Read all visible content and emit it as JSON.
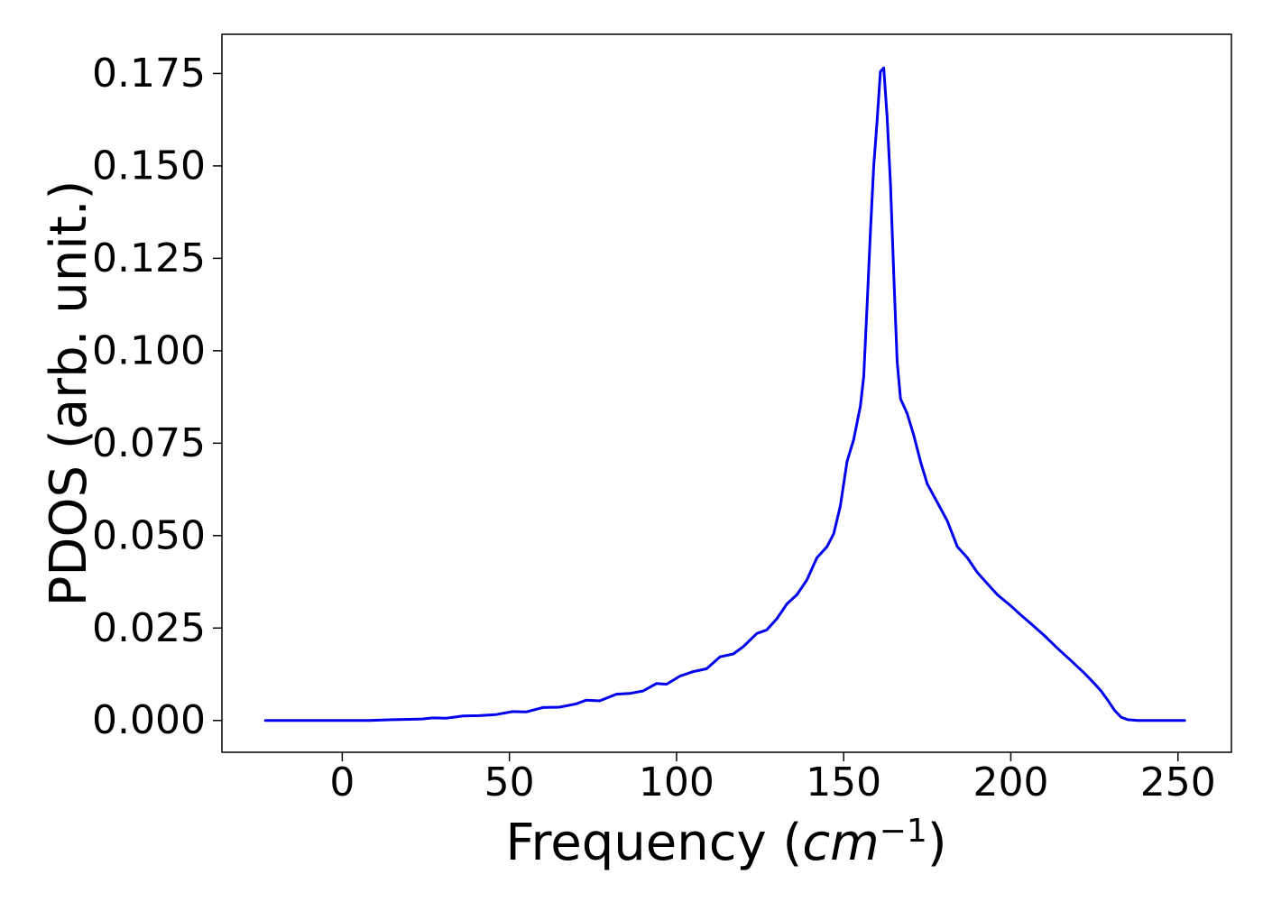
{
  "chart_data": {
    "type": "line",
    "title": "",
    "xlabel": {
      "prefix": "Frequency (",
      "italic": "cm",
      "superscript": "−1",
      "suffix": ")"
    },
    "ylabel": "PDOS (arb. unit.)",
    "xlim": [
      -36,
      266
    ],
    "ylim": [
      -0.0086,
      0.1856
    ],
    "x_ticks": [
      0,
      50,
      100,
      150,
      200,
      250
    ],
    "x_tick_labels": [
      "0",
      "50",
      "100",
      "150",
      "200",
      "250"
    ],
    "y_ticks": [
      0,
      0.025,
      0.05,
      0.075,
      0.1,
      0.125,
      0.15,
      0.175
    ],
    "y_tick_labels": [
      "0.000",
      "0.025",
      "0.050",
      "0.075",
      "0.100",
      "0.125",
      "0.150",
      "0.175"
    ],
    "grid": false,
    "series": [
      {
        "color": "#0000ee",
        "points": [
          [
            -23,
            0
          ],
          [
            0,
            0
          ],
          [
            8,
            0
          ],
          [
            15,
            0.0002
          ],
          [
            20,
            0.0003
          ],
          [
            24,
            0.0004
          ],
          [
            27,
            0.0007
          ],
          [
            31,
            0.0006
          ],
          [
            36,
            0.0012
          ],
          [
            41,
            0.0013
          ],
          [
            46,
            0.0016
          ],
          [
            51,
            0.0024
          ],
          [
            55,
            0.0023
          ],
          [
            60,
            0.0035
          ],
          [
            65,
            0.0036
          ],
          [
            70,
            0.0045
          ],
          [
            73,
            0.0055
          ],
          [
            77,
            0.0053
          ],
          [
            82,
            0.0071
          ],
          [
            86,
            0.0073
          ],
          [
            90,
            0.008
          ],
          [
            94,
            0.01
          ],
          [
            97,
            0.0098
          ],
          [
            101,
            0.012
          ],
          [
            105,
            0.0132
          ],
          [
            109,
            0.014
          ],
          [
            113,
            0.0172
          ],
          [
            117,
            0.018
          ],
          [
            120,
            0.02
          ],
          [
            124,
            0.0235
          ],
          [
            127,
            0.0245
          ],
          [
            130,
            0.0275
          ],
          [
            133,
            0.0315
          ],
          [
            136,
            0.034
          ],
          [
            139,
            0.038
          ],
          [
            142,
            0.044
          ],
          [
            145,
            0.047
          ],
          [
            147,
            0.0505
          ],
          [
            149,
            0.058
          ],
          [
            151,
            0.07
          ],
          [
            153,
            0.076
          ],
          [
            155,
            0.085
          ],
          [
            156,
            0.093
          ],
          [
            157,
            0.112
          ],
          [
            158,
            0.132
          ],
          [
            159,
            0.15
          ],
          [
            160,
            0.162
          ],
          [
            161,
            0.1755
          ],
          [
            162,
            0.1765
          ],
          [
            163,
            0.163
          ],
          [
            164,
            0.145
          ],
          [
            165,
            0.12
          ],
          [
            166,
            0.097
          ],
          [
            167,
            0.087
          ],
          [
            169,
            0.083
          ],
          [
            171,
            0.077
          ],
          [
            173,
            0.07
          ],
          [
            175,
            0.064
          ],
          [
            178,
            0.059
          ],
          [
            181,
            0.054
          ],
          [
            184,
            0.047
          ],
          [
            187,
            0.044
          ],
          [
            190,
            0.04
          ],
          [
            193,
            0.037
          ],
          [
            196,
            0.034
          ],
          [
            200,
            0.031
          ],
          [
            203,
            0.0285
          ],
          [
            206,
            0.0262
          ],
          [
            210,
            0.023
          ],
          [
            214,
            0.0195
          ],
          [
            218,
            0.0162
          ],
          [
            222,
            0.0128
          ],
          [
            225,
            0.01
          ],
          [
            227,
            0.008
          ],
          [
            229,
            0.0055
          ],
          [
            231,
            0.0028
          ],
          [
            233,
            0.0009
          ],
          [
            235,
            0.0002
          ],
          [
            238,
            0
          ],
          [
            252,
            0
          ]
        ]
      }
    ]
  }
}
